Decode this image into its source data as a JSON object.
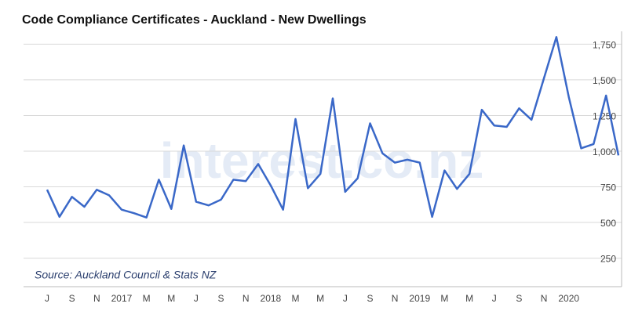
{
  "chart_data": {
    "type": "line",
    "title": "Code Compliance Certificates - Auckland - New Dwellings",
    "source": "Source: Auckland Council & Stats NZ",
    "watermark": "interest.co.nz",
    "categories": [
      "J",
      null,
      "S",
      null,
      "N",
      null,
      "2017",
      null,
      "M",
      null,
      "M",
      null,
      "J",
      null,
      "S",
      null,
      "N",
      null,
      "2018",
      null,
      "M",
      null,
      "M",
      null,
      "J",
      null,
      "S",
      null,
      "N",
      null,
      "2019",
      null,
      "M",
      null,
      "M",
      null,
      "J",
      null,
      "S",
      null,
      "N",
      null,
      "2020",
      null,
      null,
      null,
      null
    ],
    "values": [
      730,
      540,
      680,
      610,
      730,
      690,
      590,
      565,
      535,
      800,
      595,
      1040,
      645,
      620,
      660,
      800,
      790,
      910,
      760,
      590,
      1225,
      740,
      840,
      1370,
      715,
      810,
      1195,
      985,
      920,
      940,
      920,
      540,
      865,
      735,
      840,
      1290,
      1180,
      1170,
      1300,
      1220,
      1510,
      1800,
      1380,
      1020,
      1050,
      1390,
      970
    ],
    "color": "#3a68c8",
    "ylim": [
      50,
      1840
    ],
    "yticks": [
      250,
      500,
      750,
      {
        "value": 1000,
        "label": "1,000"
      },
      {
        "value": 1250,
        "label": "1,250"
      },
      {
        "value": 1500,
        "label": "1,500"
      },
      {
        "value": 1750,
        "label": "1,750"
      }
    ],
    "grid": true
  }
}
